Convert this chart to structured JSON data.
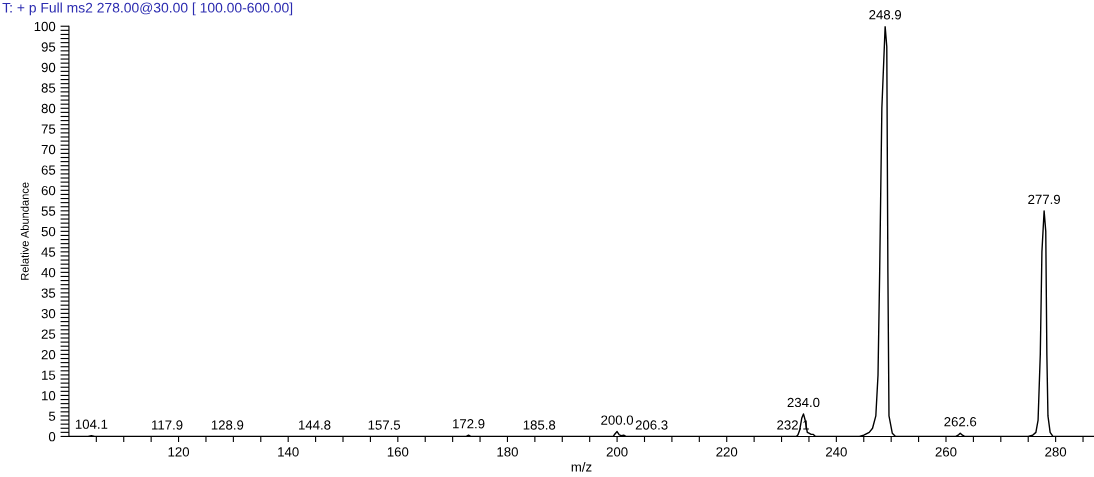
{
  "chart_data": {
    "type": "line",
    "title": "T: + p Full ms2 278.00@30.00 [ 100.00-600.00]",
    "xlabel": "m/z",
    "ylabel": "Relative Abundance",
    "series": [
      {
        "color": "#000000",
        "x": [
          100,
          103.5,
          104.1,
          104.7,
          172.5,
          172.9,
          173.3,
          199.3,
          199.6,
          200.0,
          200.4,
          200.8,
          201.2,
          201.6,
          232.7,
          233.0,
          233.3,
          233.7,
          234.0,
          234.3,
          234.7,
          235.0,
          235.4,
          235.8,
          236.2,
          244.2,
          245,
          246,
          246.6,
          247.2,
          247.6,
          247.9,
          248.3,
          248.9,
          249.2,
          249.4,
          249.6,
          250.2,
          250.8,
          261.8,
          262.3,
          262.6,
          263.0,
          263.4,
          275,
          275.8,
          276.4,
          276.8,
          277.2,
          277.5,
          277.9,
          278.2,
          278.4,
          278.6,
          279.0,
          279.5,
          287
        ],
        "values": [
          0,
          0,
          0.2,
          0,
          0,
          0.3,
          0,
          0,
          0.6,
          1.2,
          0.4,
          0.2,
          0.3,
          0,
          0,
          0.4,
          1.5,
          4.5,
          5.5,
          4,
          1,
          0.8,
          0.5,
          0.5,
          0,
          0,
          0.3,
          1,
          2,
          5,
          15,
          40,
          80,
          100,
          95,
          40,
          5,
          0.8,
          0,
          0,
          0.4,
          0.8,
          0.3,
          0,
          0,
          0.3,
          1,
          4,
          20,
          45,
          55,
          50,
          20,
          5,
          1,
          0,
          0
        ]
      }
    ],
    "annotations": [
      {
        "text": "104.1",
        "x": 104.1,
        "y": 0.2
      },
      {
        "text": "117.9",
        "x": 117.9,
        "y": 0
      },
      {
        "text": "128.9",
        "x": 128.9,
        "y": 0
      },
      {
        "text": "144.8",
        "x": 144.8,
        "y": 0
      },
      {
        "text": "157.5",
        "x": 157.5,
        "y": 0
      },
      {
        "text": "172.9",
        "x": 172.9,
        "y": 0.3
      },
      {
        "text": "185.8",
        "x": 185.8,
        "y": 0
      },
      {
        "text": "200.0",
        "x": 200.0,
        "y": 1.2
      },
      {
        "text": "206.3",
        "x": 206.3,
        "y": 0
      },
      {
        "text": "232.1",
        "x": 232.1,
        "y": 0
      },
      {
        "text": "234.0",
        "x": 234.0,
        "y": 5.5
      },
      {
        "text": "248.9",
        "x": 248.9,
        "y": 100
      },
      {
        "text": "262.6",
        "x": 262.6,
        "y": 0.8
      },
      {
        "text": "277.9",
        "x": 277.9,
        "y": 55
      }
    ],
    "xlim": [
      100,
      287
    ],
    "ylim": [
      0,
      100
    ],
    "xticks": [
      {
        "value": 105,
        "label": null
      },
      {
        "value": 110,
        "label": null
      },
      {
        "value": 115,
        "label": null
      },
      120,
      {
        "value": 125,
        "label": null
      },
      {
        "value": 130,
        "label": null
      },
      {
        "value": 135,
        "label": null
      },
      140,
      {
        "value": 145,
        "label": null
      },
      {
        "value": 150,
        "label": null
      },
      {
        "value": 155,
        "label": null
      },
      160,
      {
        "value": 165,
        "label": null
      },
      {
        "value": 170,
        "label": null
      },
      {
        "value": 175,
        "label": null
      },
      180,
      {
        "value": 185,
        "label": null
      },
      {
        "value": 190,
        "label": null
      },
      {
        "value": 195,
        "label": null
      },
      200,
      {
        "value": 205,
        "label": null
      },
      {
        "value": 210,
        "label": null
      },
      {
        "value": 215,
        "label": null
      },
      220,
      {
        "value": 225,
        "label": null
      },
      {
        "value": 230,
        "label": null
      },
      {
        "value": 235,
        "label": null
      },
      240,
      {
        "value": 245,
        "label": null
      },
      {
        "value": 250,
        "label": null
      },
      {
        "value": 255,
        "label": null
      },
      260,
      {
        "value": 265,
        "label": null
      },
      {
        "value": 270,
        "label": null
      },
      {
        "value": 275,
        "label": null
      },
      280,
      {
        "value": 285,
        "label": null
      }
    ],
    "yticks": [
      0,
      {
        "value": 1,
        "label": null
      },
      {
        "value": 2,
        "label": null
      },
      {
        "value": 3,
        "label": null
      },
      {
        "value": 4,
        "label": null
      },
      5,
      {
        "value": 6,
        "label": null
      },
      {
        "value": 7,
        "label": null
      },
      {
        "value": 8,
        "label": null
      },
      {
        "value": 9,
        "label": null
      },
      10,
      {
        "value": 11,
        "label": null
      },
      {
        "value": 12,
        "label": null
      },
      {
        "value": 13,
        "label": null
      },
      {
        "value": 14,
        "label": null
      },
      15,
      {
        "value": 16,
        "label": null
      },
      {
        "value": 17,
        "label": null
      },
      {
        "value": 18,
        "label": null
      },
      {
        "value": 19,
        "label": null
      },
      20,
      {
        "value": 21,
        "label": null
      },
      {
        "value": 22,
        "label": null
      },
      {
        "value": 23,
        "label": null
      },
      {
        "value": 24,
        "label": null
      },
      25,
      {
        "value": 26,
        "label": null
      },
      {
        "value": 27,
        "label": null
      },
      {
        "value": 28,
        "label": null
      },
      {
        "value": 29,
        "label": null
      },
      30,
      {
        "value": 31,
        "label": null
      },
      {
        "value": 32,
        "label": null
      },
      {
        "value": 33,
        "label": null
      },
      {
        "value": 34,
        "label": null
      },
      35,
      {
        "value": 36,
        "label": null
      },
      {
        "value": 37,
        "label": null
      },
      {
        "value": 38,
        "label": null
      },
      {
        "value": 39,
        "label": null
      },
      40,
      {
        "value": 41,
        "label": null
      },
      {
        "value": 42,
        "label": null
      },
      {
        "value": 43,
        "label": null
      },
      {
        "value": 44,
        "label": null
      },
      45,
      {
        "value": 46,
        "label": null
      },
      {
        "value": 47,
        "label": null
      },
      {
        "value": 48,
        "label": null
      },
      {
        "value": 49,
        "label": null
      },
      50,
      {
        "value": 51,
        "label": null
      },
      {
        "value": 52,
        "label": null
      },
      {
        "value": 53,
        "label": null
      },
      {
        "value": 54,
        "label": null
      },
      55,
      {
        "value": 56,
        "label": null
      },
      {
        "value": 57,
        "label": null
      },
      {
        "value": 58,
        "label": null
      },
      {
        "value": 59,
        "label": null
      },
      60,
      {
        "value": 61,
        "label": null
      },
      {
        "value": 62,
        "label": null
      },
      {
        "value": 63,
        "label": null
      },
      {
        "value": 64,
        "label": null
      },
      65,
      {
        "value": 66,
        "label": null
      },
      {
        "value": 67,
        "label": null
      },
      {
        "value": 68,
        "label": null
      },
      {
        "value": 69,
        "label": null
      },
      70,
      {
        "value": 71,
        "label": null
      },
      {
        "value": 72,
        "label": null
      },
      {
        "value": 73,
        "label": null
      },
      {
        "value": 74,
        "label": null
      },
      75,
      {
        "value": 76,
        "label": null
      },
      {
        "value": 77,
        "label": null
      },
      {
        "value": 78,
        "label": null
      },
      {
        "value": 79,
        "label": null
      },
      80,
      {
        "value": 81,
        "label": null
      },
      {
        "value": 82,
        "label": null
      },
      {
        "value": 83,
        "label": null
      },
      {
        "value": 84,
        "label": null
      },
      85,
      {
        "value": 86,
        "label": null
      },
      {
        "value": 87,
        "label": null
      },
      {
        "value": 88,
        "label": null
      },
      {
        "value": 89,
        "label": null
      },
      90,
      {
        "value": 91,
        "label": null
      },
      {
        "value": 92,
        "label": null
      },
      {
        "value": 93,
        "label": null
      },
      {
        "value": 94,
        "label": null
      },
      95,
      {
        "value": 96,
        "label": null
      },
      {
        "value": 97,
        "label": null
      },
      {
        "value": 98,
        "label": null
      },
      {
        "value": 99,
        "label": null
      },
      100
    ],
    "grid": false,
    "marker": "none",
    "line_style": "solid"
  }
}
